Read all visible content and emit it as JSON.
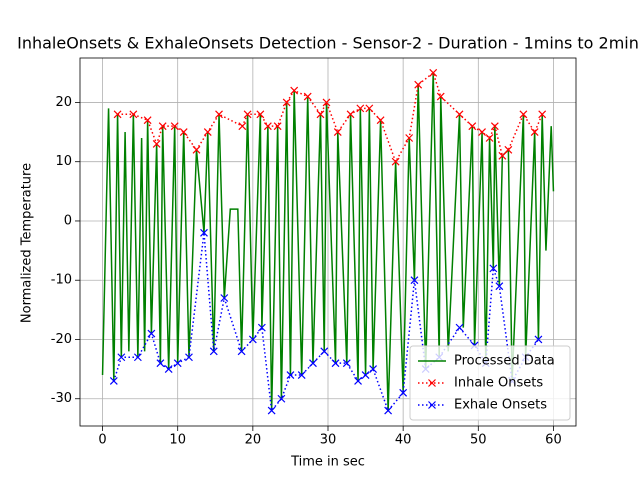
{
  "chart_data": {
    "type": "line",
    "title": "InhaleOnsets & ExhaleOnsets Detection - Sensor-2 - Duration - 1mins to 2min",
    "x_label": "Time in sec",
    "y_label": "Normalized Temperature",
    "xlim": [
      -3,
      63
    ],
    "ylim": [
      -34.6,
      27.5
    ],
    "xticks": [
      0,
      10,
      20,
      30,
      40,
      50,
      60
    ],
    "yticks": [
      -30,
      -20,
      -10,
      0,
      10,
      20
    ],
    "grid": true,
    "legend": "lower right",
    "series": [
      {
        "name": "Processed Data",
        "color": "#008000",
        "linestyle": "solid",
        "marker": "none",
        "x": [
          0,
          0.8,
          1.5,
          2,
          2.5,
          3,
          3.5,
          4.1,
          4.7,
          5.2,
          5.6,
          6,
          6.5,
          7.2,
          7.7,
          8,
          8.8,
          9.6,
          10,
          10.8,
          11.5,
          12.5,
          13.5,
          14,
          14.8,
          15.5,
          16.2,
          17,
          18,
          18.5,
          19.3,
          20,
          21,
          21.2,
          22,
          22.5,
          23.3,
          23.8,
          24.5,
          25,
          25.5,
          26.5,
          27.3,
          28,
          29,
          29.5,
          29.8,
          31,
          31.3,
          32.5,
          33,
          34,
          34.3,
          35,
          35.5,
          36,
          37,
          38,
          39,
          40,
          40.8,
          41.5,
          42,
          43,
          44,
          44.8,
          45,
          46,
          47.5,
          48,
          49.2,
          49.5,
          50.5,
          51,
          51.5,
          52,
          52.2,
          52.8,
          53.2,
          54,
          54.5,
          56,
          56.3,
          57.5,
          58,
          58.5,
          59,
          59.7,
          60
        ],
        "values": [
          -26,
          19,
          -27,
          18,
          -23,
          15,
          -22,
          18,
          -23,
          14,
          -22,
          17,
          -19,
          13,
          -24,
          16,
          -25,
          16,
          -24,
          15,
          -23,
          12,
          -2,
          15,
          -22,
          18,
          -13,
          2,
          2,
          -22,
          18,
          -20,
          18,
          -18,
          16,
          -32,
          16,
          -30,
          20,
          -26,
          22,
          -26,
          21,
          -24,
          18,
          -22,
          20,
          -24,
          15,
          -24,
          18,
          -27,
          19,
          -26,
          19,
          -25,
          17,
          -32,
          10,
          -29,
          14,
          -10,
          23,
          -25,
          25,
          -23,
          21,
          -22,
          18,
          -18,
          16,
          -21,
          15,
          -24,
          14,
          -8,
          16,
          -11,
          11,
          12,
          -27,
          18,
          -23,
          15,
          -20,
          18,
          -5,
          16,
          5
        ]
      },
      {
        "name": "Inhale Onsets",
        "color": "#ff0000",
        "linestyle": "dotted",
        "marker": "x",
        "x": [
          2,
          4.1,
          6,
          7.2,
          8,
          9.6,
          10.8,
          12.5,
          14,
          15.5,
          18.6,
          19.3,
          21,
          22,
          23.3,
          24.5,
          25.5,
          27.3,
          29,
          29.8,
          31.3,
          33,
          34.3,
          35.5,
          37,
          39,
          40.8,
          42,
          44,
          45,
          47.5,
          49.2,
          50.5,
          51.5,
          52.2,
          53.2,
          54,
          56,
          57.5,
          58.5
        ],
        "values": [
          18,
          18,
          17,
          13,
          16,
          16,
          15,
          12,
          15,
          18,
          16,
          18,
          18,
          16,
          16,
          20,
          22,
          21,
          18,
          20,
          15,
          18,
          19,
          19,
          17,
          10,
          14,
          23,
          25,
          21,
          18,
          16,
          15,
          14,
          16,
          11,
          12,
          18,
          15,
          18
        ]
      },
      {
        "name": "Exhale Onsets",
        "color": "#0000ff",
        "linestyle": "dotted",
        "marker": "x",
        "x": [
          1.5,
          2.5,
          4.7,
          6.5,
          7.7,
          8.8,
          10,
          11.5,
          13.5,
          14.8,
          16.2,
          18.5,
          20,
          21.2,
          22.5,
          23.8,
          25,
          26.5,
          28,
          29.5,
          31,
          32.5,
          34,
          35,
          36,
          38,
          40,
          41.5,
          43,
          44.8,
          47.5,
          49.5,
          51,
          52,
          52.8,
          54.5,
          56.3,
          58
        ],
        "values": [
          -27,
          -23,
          -23,
          -19,
          -24,
          -25,
          -24,
          -23,
          -2,
          -22,
          -13,
          -22,
          -20,
          -18,
          -32,
          -30,
          -26,
          -26,
          -24,
          -22,
          -24,
          -24,
          -27,
          -26,
          -25,
          -32,
          -29,
          -10,
          -25,
          -23,
          -18,
          -21,
          -24,
          -8,
          -11,
          -27,
          -23,
          -20
        ]
      }
    ]
  }
}
